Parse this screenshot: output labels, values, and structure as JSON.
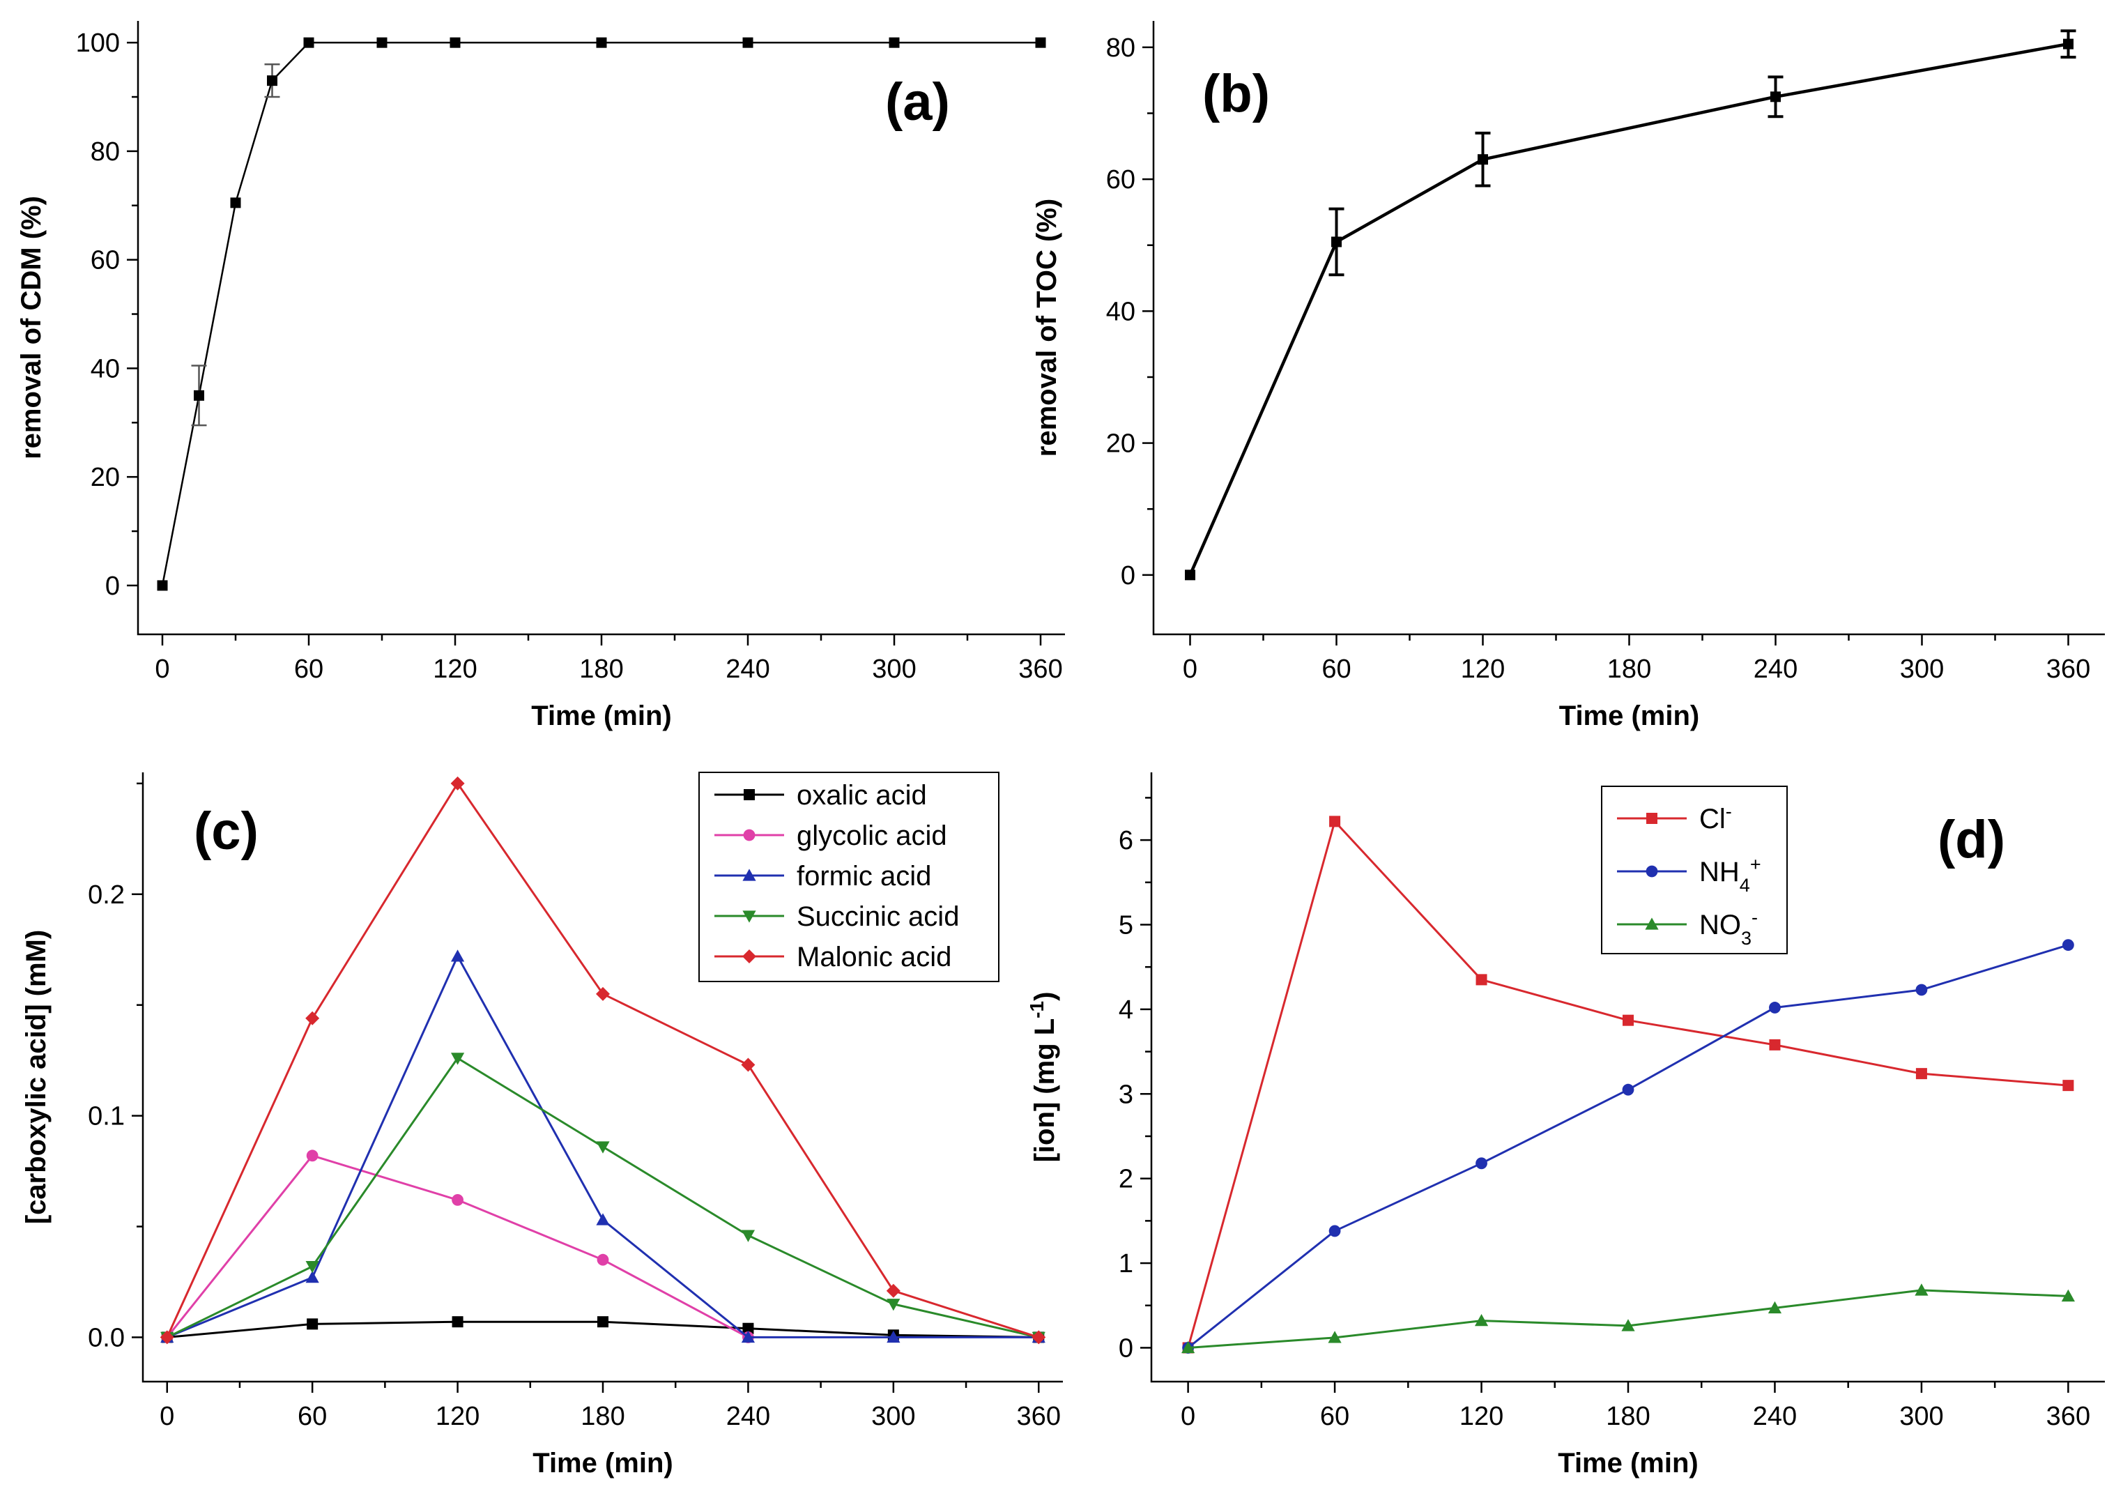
{
  "figure": {
    "panels": [
      "a",
      "b",
      "c",
      "d"
    ]
  },
  "chart_data": [
    {
      "id": "a",
      "type": "line",
      "panel_label": "(a)",
      "xlabel": "Time (min)",
      "ylabel": "removal of CDM (%)",
      "xlim": [
        -10,
        370
      ],
      "ylim": [
        -9,
        104
      ],
      "xticks": [
        0,
        60,
        120,
        180,
        240,
        300,
        360
      ],
      "yticks": [
        0,
        20,
        40,
        60,
        80,
        100
      ],
      "series": [
        {
          "name": "CDM removal",
          "color": "#000000",
          "marker": "square",
          "line_weight": "thin",
          "x": [
            0,
            15,
            30,
            45,
            60,
            90,
            120,
            180,
            240,
            300,
            360
          ],
          "y": [
            0,
            35,
            70.5,
            93,
            100,
            100,
            100,
            100,
            100,
            100,
            100
          ],
          "err": [
            0,
            5.5,
            0,
            3,
            0,
            0,
            0,
            0,
            0,
            0,
            0
          ]
        }
      ]
    },
    {
      "id": "b",
      "type": "line",
      "panel_label": "(b)",
      "xlabel": "Time (min)",
      "ylabel": "removal of TOC (%)",
      "xlim": [
        -15,
        375
      ],
      "ylim": [
        -9,
        84
      ],
      "xticks": [
        0,
        60,
        120,
        180,
        240,
        300,
        360
      ],
      "yticks": [
        0,
        20,
        40,
        60,
        80
      ],
      "series": [
        {
          "name": "TOC removal",
          "color": "#000000",
          "marker": "square",
          "line_weight": "thick",
          "x": [
            0,
            60,
            120,
            240,
            360
          ],
          "y": [
            0,
            50.5,
            63,
            72.5,
            80.5
          ],
          "err": [
            0,
            5,
            4,
            3,
            2
          ]
        }
      ]
    },
    {
      "id": "c",
      "type": "line",
      "panel_label": "(c)",
      "xlabel": "Time (min)",
      "ylabel": "[carboxylic acid] (mM)",
      "xlim": [
        -10,
        370
      ],
      "ylim": [
        -0.02,
        0.255
      ],
      "xticks": [
        0,
        60,
        120,
        180,
        240,
        300,
        360
      ],
      "yticks": [
        0.0,
        0.1,
        0.2
      ],
      "ytick_labels": [
        "0.0",
        "0.1",
        "0.2"
      ],
      "legend_position": "top-right",
      "series": [
        {
          "name": "oxalic acid",
          "color": "#000000",
          "marker": "square",
          "x": [
            0,
            60,
            120,
            180,
            240,
            300,
            360
          ],
          "y": [
            0,
            0.006,
            0.007,
            0.007,
            0.004,
            0.001,
            0
          ]
        },
        {
          "name": "glycolic acid",
          "color": "#e040a8",
          "marker": "circle",
          "x": [
            0,
            60,
            120,
            180,
            240
          ],
          "y": [
            0,
            0.082,
            0.062,
            0.035,
            0
          ]
        },
        {
          "name": "formic acid",
          "color": "#2030b0",
          "marker": "triangle-up",
          "x": [
            0,
            60,
            120,
            180,
            240,
            300,
            360
          ],
          "y": [
            0,
            0.027,
            0.172,
            0.053,
            0,
            0,
            0
          ]
        },
        {
          "name": "Succinic acid",
          "color": "#2a8a2a",
          "marker": "triangle-down",
          "x": [
            0,
            60,
            120,
            180,
            240,
            300,
            360
          ],
          "y": [
            0,
            0.032,
            0.126,
            0.086,
            0.046,
            0.015,
            0
          ]
        },
        {
          "name": "Malonic acid",
          "color": "#d8282e",
          "marker": "diamond",
          "x": [
            0,
            60,
            120,
            180,
            240,
            300,
            360
          ],
          "y": [
            0,
            0.144,
            0.25,
            0.155,
            0.123,
            0.021,
            0
          ]
        }
      ]
    },
    {
      "id": "d",
      "type": "line",
      "panel_label": "(d)",
      "xlabel": "Time (min)",
      "ylabel": "[ion] (mg L",
      "ylabel_sup": "-1",
      "ylabel_tail": ")",
      "xlim": [
        -15,
        375
      ],
      "ylim": [
        -0.4,
        6.8
      ],
      "xticks": [
        0,
        60,
        120,
        180,
        240,
        300,
        360
      ],
      "yticks": [
        0,
        1,
        2,
        3,
        4,
        5,
        6
      ],
      "legend_position": "top-center",
      "series": [
        {
          "name": "Cl",
          "sup": "-",
          "sub": "",
          "color": "#d8282e",
          "marker": "square",
          "x": [
            0,
            60,
            120,
            180,
            240,
            300,
            360
          ],
          "y": [
            0,
            6.22,
            4.35,
            3.87,
            3.58,
            3.24,
            3.1
          ]
        },
        {
          "name": "NH",
          "sub": "4",
          "sup": "+",
          "color": "#2030b0",
          "marker": "circle",
          "x": [
            0,
            60,
            120,
            180,
            240,
            300,
            360
          ],
          "y": [
            0,
            1.38,
            2.18,
            3.05,
            4.02,
            4.23,
            4.76
          ]
        },
        {
          "name": "NO",
          "sub": "3",
          "sup": "-",
          "color": "#2a8a2a",
          "marker": "triangle-up",
          "x": [
            0,
            60,
            120,
            180,
            240,
            300,
            360
          ],
          "y": [
            0,
            0.12,
            0.32,
            0.26,
            0.47,
            0.68,
            0.61
          ]
        }
      ]
    }
  ]
}
